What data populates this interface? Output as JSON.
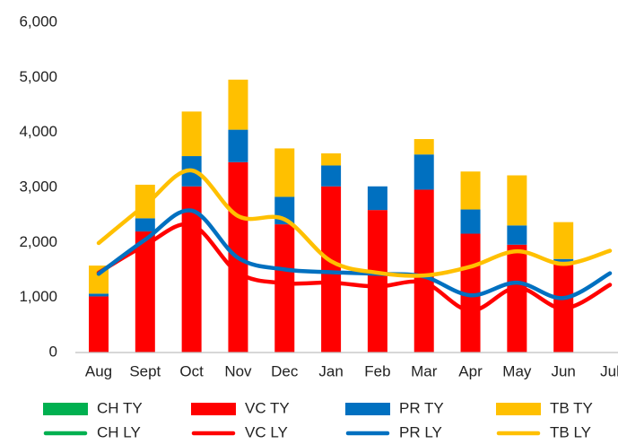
{
  "chart_data": {
    "type": "bar",
    "categories": [
      "Aug",
      "Sept",
      "Oct",
      "Nov",
      "Dec",
      "Jan",
      "Feb",
      "Mar",
      "Apr",
      "May",
      "Jun",
      "Jul"
    ],
    "ylim": [
      0,
      6000
    ],
    "yticks": [
      0,
      {
        "value": 1000,
        "label": "1,000"
      },
      {
        "value": 2000,
        "label": "2,000"
      },
      {
        "value": 3000,
        "label": "3,000"
      },
      {
        "value": 4000,
        "label": "4,000"
      },
      {
        "value": 5000,
        "label": "5,000"
      },
      {
        "value": 6000,
        "label": "6,000"
      }
    ],
    "series": [
      {
        "name": "CH TY",
        "type": "bar",
        "color": "#00b050",
        "values": [
          0,
          0,
          0,
          0,
          0,
          0,
          0,
          0,
          0,
          0,
          0,
          0
        ]
      },
      {
        "name": "VC TY",
        "type": "bar",
        "color": "#ff0000",
        "values": [
          1020,
          2200,
          3020,
          3460,
          2330,
          3020,
          2590,
          2960,
          2160,
          1960,
          1650,
          0
        ]
      },
      {
        "name": "PR TY",
        "type": "bar",
        "color": "#0070c0",
        "values": [
          50,
          240,
          550,
          590,
          500,
          380,
          430,
          640,
          440,
          350,
          50,
          0
        ]
      },
      {
        "name": "TB TY",
        "type": "bar",
        "color": "#ffc000",
        "values": [
          510,
          610,
          810,
          910,
          880,
          220,
          0,
          280,
          690,
          910,
          670,
          0
        ]
      },
      {
        "name": "CH LY",
        "type": "line",
        "color": "#00b050",
        "values": [
          null,
          null,
          null,
          null,
          null,
          null,
          null,
          null,
          null,
          null,
          null,
          null
        ]
      },
      {
        "name": "VC LY",
        "type": "line",
        "color": "#ff0000",
        "values": [
          1450,
          1950,
          2320,
          1450,
          1260,
          1270,
          1200,
          1270,
          760,
          1180,
          800,
          1230
        ]
      },
      {
        "name": "PR LY",
        "type": "line",
        "color": "#0070c0",
        "values": [
          1430,
          2050,
          2580,
          1720,
          1510,
          1460,
          1430,
          1380,
          1040,
          1270,
          990,
          1440
        ]
      },
      {
        "name": "TB LY",
        "type": "line",
        "color": "#ffc000",
        "values": [
          1990,
          2680,
          3310,
          2480,
          2420,
          1660,
          1450,
          1400,
          1560,
          1840,
          1610,
          1850
        ]
      }
    ]
  }
}
